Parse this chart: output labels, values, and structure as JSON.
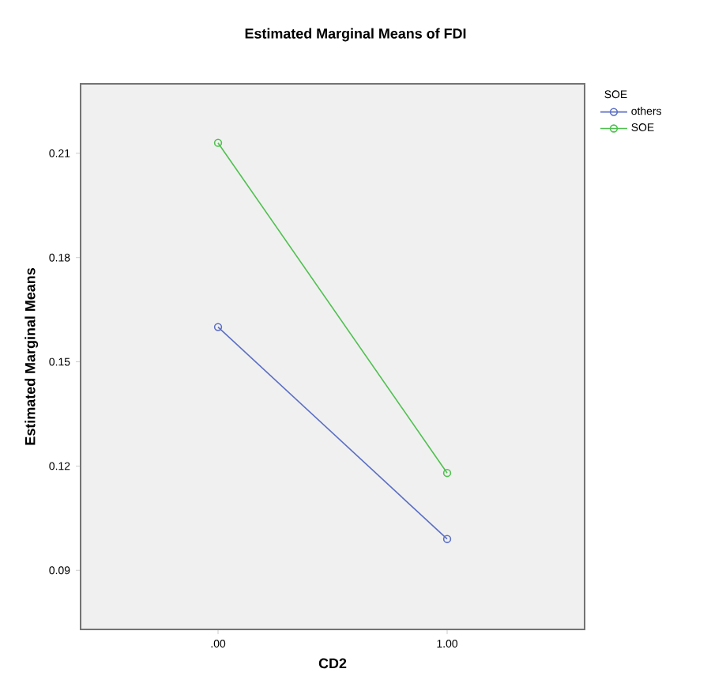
{
  "chart_data": {
    "type": "line",
    "title": "Estimated Marginal Means of FDI",
    "xlabel": "CD2",
    "ylabel": "Estimated Marginal Means",
    "legend_title": "SOE",
    "categories": [
      ".00",
      "1.00"
    ],
    "series": [
      {
        "name": "others",
        "color": "#5b6fc4",
        "values": [
          0.16,
          0.099
        ]
      },
      {
        "name": "SOE",
        "color": "#4fc04f",
        "values": [
          0.213,
          0.118
        ]
      }
    ],
    "ylim": [
      0.073,
      0.23
    ],
    "yticks": [
      0.09,
      0.12,
      0.15,
      0.18,
      0.21
    ],
    "marker": "circle",
    "line_style": "solid",
    "legend": "top right",
    "grid": false
  }
}
